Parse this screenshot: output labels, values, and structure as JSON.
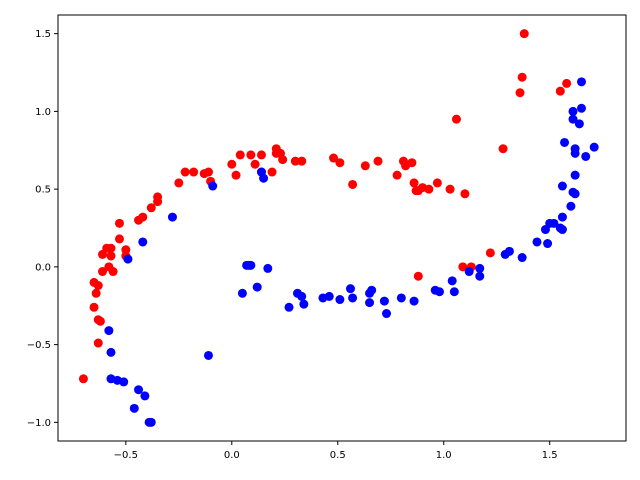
{
  "chart_data": {
    "type": "scatter",
    "title": "",
    "xlabel": "",
    "ylabel": "",
    "xlim": [
      -0.82,
      1.86
    ],
    "ylim": [
      -1.12,
      1.62
    ],
    "grid": false,
    "legend": "none",
    "xticks": [
      -0.5,
      0.0,
      0.5,
      1.0,
      1.5
    ],
    "xtick_labels": [
      "−0.5",
      "0.0",
      "0.5",
      "1.0",
      "1.5"
    ],
    "yticks": [
      -1.0,
      -0.5,
      0.0,
      0.5,
      1.0,
      1.5
    ],
    "ytick_labels": [
      "−1.0",
      "−0.5",
      "0.0",
      "0.5",
      "1.0",
      "1.5"
    ],
    "series": [
      {
        "color": "#ff0000",
        "points": [
          [
            -0.7,
            -0.72
          ],
          [
            -0.65,
            -0.1
          ],
          [
            -0.65,
            -0.26
          ],
          [
            -0.64,
            -0.17
          ],
          [
            -0.63,
            -0.49
          ],
          [
            -0.63,
            -0.12
          ],
          [
            -0.62,
            -0.35
          ],
          [
            -0.63,
            -0.34
          ],
          [
            -0.61,
            -0.03
          ],
          [
            -0.61,
            0.08
          ],
          [
            -0.59,
            0.12
          ],
          [
            -0.57,
            0.12
          ],
          [
            -0.58,
            0.0
          ],
          [
            -0.56,
            -0.03
          ],
          [
            -0.57,
            0.07
          ],
          [
            -0.53,
            0.18
          ],
          [
            -0.53,
            0.28
          ],
          [
            -0.5,
            0.11
          ],
          [
            -0.5,
            0.07
          ],
          [
            -0.44,
            0.3
          ],
          [
            -0.42,
            0.32
          ],
          [
            -0.38,
            0.38
          ],
          [
            -0.35,
            0.42
          ],
          [
            -0.35,
            0.45
          ],
          [
            -0.25,
            0.54
          ],
          [
            -0.22,
            0.61
          ],
          [
            -0.18,
            0.61
          ],
          [
            -0.13,
            0.6
          ],
          [
            -0.11,
            0.61
          ],
          [
            -0.1,
            0.55
          ],
          [
            0.0,
            0.66
          ],
          [
            0.02,
            0.59
          ],
          [
            0.04,
            0.72
          ],
          [
            0.09,
            0.72
          ],
          [
            0.11,
            0.66
          ],
          [
            0.14,
            0.72
          ],
          [
            0.14,
            0.61
          ],
          [
            0.19,
            0.61
          ],
          [
            0.21,
            0.76
          ],
          [
            0.21,
            0.73
          ],
          [
            0.23,
            0.73
          ],
          [
            0.24,
            0.69
          ],
          [
            0.3,
            0.68
          ],
          [
            0.33,
            0.68
          ],
          [
            0.48,
            0.7
          ],
          [
            0.51,
            0.67
          ],
          [
            0.57,
            0.53
          ],
          [
            0.63,
            0.65
          ],
          [
            0.69,
            0.68
          ],
          [
            0.78,
            0.59
          ],
          [
            0.81,
            0.68
          ],
          [
            0.82,
            0.65
          ],
          [
            0.85,
            0.67
          ],
          [
            0.86,
            0.54
          ],
          [
            0.87,
            0.49
          ],
          [
            0.88,
            0.49
          ],
          [
            0.9,
            0.51
          ],
          [
            0.93,
            0.5
          ],
          [
            0.97,
            0.54
          ],
          [
            1.03,
            0.5
          ],
          [
            1.1,
            0.47
          ],
          [
            0.88,
            -0.06
          ],
          [
            1.06,
            0.95
          ],
          [
            1.09,
            0.0
          ],
          [
            1.13,
            0.0
          ],
          [
            1.22,
            0.09
          ],
          [
            1.28,
            0.76
          ],
          [
            1.36,
            1.12
          ],
          [
            1.37,
            1.22
          ],
          [
            1.38,
            1.5
          ],
          [
            1.55,
            1.13
          ],
          [
            1.58,
            1.18
          ]
        ]
      },
      {
        "color": "#0000ff",
        "points": [
          [
            -0.58,
            -0.41
          ],
          [
            -0.57,
            -0.55
          ],
          [
            -0.57,
            -0.72
          ],
          [
            -0.54,
            -0.73
          ],
          [
            -0.51,
            -0.74
          ],
          [
            -0.49,
            0.05
          ],
          [
            -0.46,
            -0.91
          ],
          [
            -0.44,
            -0.79
          ],
          [
            -0.42,
            0.16
          ],
          [
            -0.41,
            -0.83
          ],
          [
            -0.38,
            -1.0
          ],
          [
            -0.39,
            -1.0
          ],
          [
            -0.28,
            0.32
          ],
          [
            -0.11,
            -0.57
          ],
          [
            -0.09,
            0.52
          ],
          [
            0.05,
            -0.17
          ],
          [
            0.07,
            0.01
          ],
          [
            0.08,
            0.01
          ],
          [
            0.09,
            0.01
          ],
          [
            0.12,
            -0.13
          ],
          [
            0.15,
            0.57
          ],
          [
            0.14,
            0.61
          ],
          [
            0.17,
            -0.01
          ],
          [
            0.27,
            -0.26
          ],
          [
            0.31,
            -0.17
          ],
          [
            0.33,
            -0.19
          ],
          [
            0.34,
            -0.24
          ],
          [
            0.43,
            -0.2
          ],
          [
            0.46,
            -0.19
          ],
          [
            0.51,
            -0.21
          ],
          [
            0.56,
            -0.14
          ],
          [
            0.57,
            -0.2
          ],
          [
            0.65,
            -0.23
          ],
          [
            0.65,
            -0.17
          ],
          [
            0.66,
            -0.15
          ],
          [
            0.72,
            -0.22
          ],
          [
            0.73,
            -0.3
          ],
          [
            0.8,
            -0.2
          ],
          [
            0.86,
            -0.22
          ],
          [
            0.96,
            -0.15
          ],
          [
            0.98,
            -0.16
          ],
          [
            1.04,
            -0.09
          ],
          [
            1.05,
            -0.16
          ],
          [
            1.12,
            -0.03
          ],
          [
            1.17,
            -0.01
          ],
          [
            1.17,
            -0.06
          ],
          [
            1.29,
            0.08
          ],
          [
            1.31,
            0.1
          ],
          [
            1.37,
            0.06
          ],
          [
            1.44,
            0.16
          ],
          [
            1.49,
            0.15
          ],
          [
            1.48,
            0.24
          ],
          [
            1.5,
            0.28
          ],
          [
            1.52,
            0.28
          ],
          [
            1.55,
            0.25
          ],
          [
            1.56,
            0.24
          ],
          [
            1.56,
            0.32
          ],
          [
            1.56,
            0.52
          ],
          [
            1.57,
            0.8
          ],
          [
            1.6,
            0.39
          ],
          [
            1.61,
            0.48
          ],
          [
            1.61,
            0.95
          ],
          [
            1.62,
            0.47
          ],
          [
            1.62,
            0.59
          ],
          [
            1.61,
            1.0
          ],
          [
            1.62,
            0.76
          ],
          [
            1.62,
            0.73
          ],
          [
            1.64,
            0.92
          ],
          [
            1.65,
            1.02
          ],
          [
            1.65,
            1.19
          ],
          [
            1.67,
            0.71
          ],
          [
            1.71,
            0.77
          ]
        ]
      }
    ]
  }
}
